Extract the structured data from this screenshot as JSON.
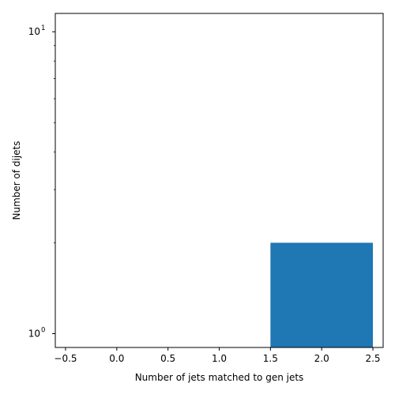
{
  "chart_data": {
    "type": "bar",
    "title": "",
    "xlabel": "Number of jets matched to gen jets",
    "ylabel": "Number of dijets",
    "xlim": [
      -0.6,
      2.6
    ],
    "ylim": [
      0.9,
      11.5
    ],
    "yscale": "log",
    "grid": false,
    "bar_color": "#1f77b4",
    "bars": [
      {
        "x_start": 1.5,
        "x_end": 2.5,
        "value": 2
      }
    ],
    "x_ticks": [
      {
        "value": -0.5,
        "label": "−0.5"
      },
      {
        "value": 0.0,
        "label": "0.0"
      },
      {
        "value": 0.5,
        "label": "0.5"
      },
      {
        "value": 1.0,
        "label": "1.0"
      },
      {
        "value": 1.5,
        "label": "1.5"
      },
      {
        "value": 2.0,
        "label": "2.0"
      },
      {
        "value": 2.5,
        "label": "2.5"
      }
    ],
    "y_ticks": [
      {
        "value": 1,
        "base": "10",
        "exp": "0"
      },
      {
        "value": 10,
        "base": "10",
        "exp": "1"
      }
    ],
    "y_minor_ticks": [
      2,
      3,
      4,
      5,
      6,
      7,
      8,
      9
    ]
  }
}
